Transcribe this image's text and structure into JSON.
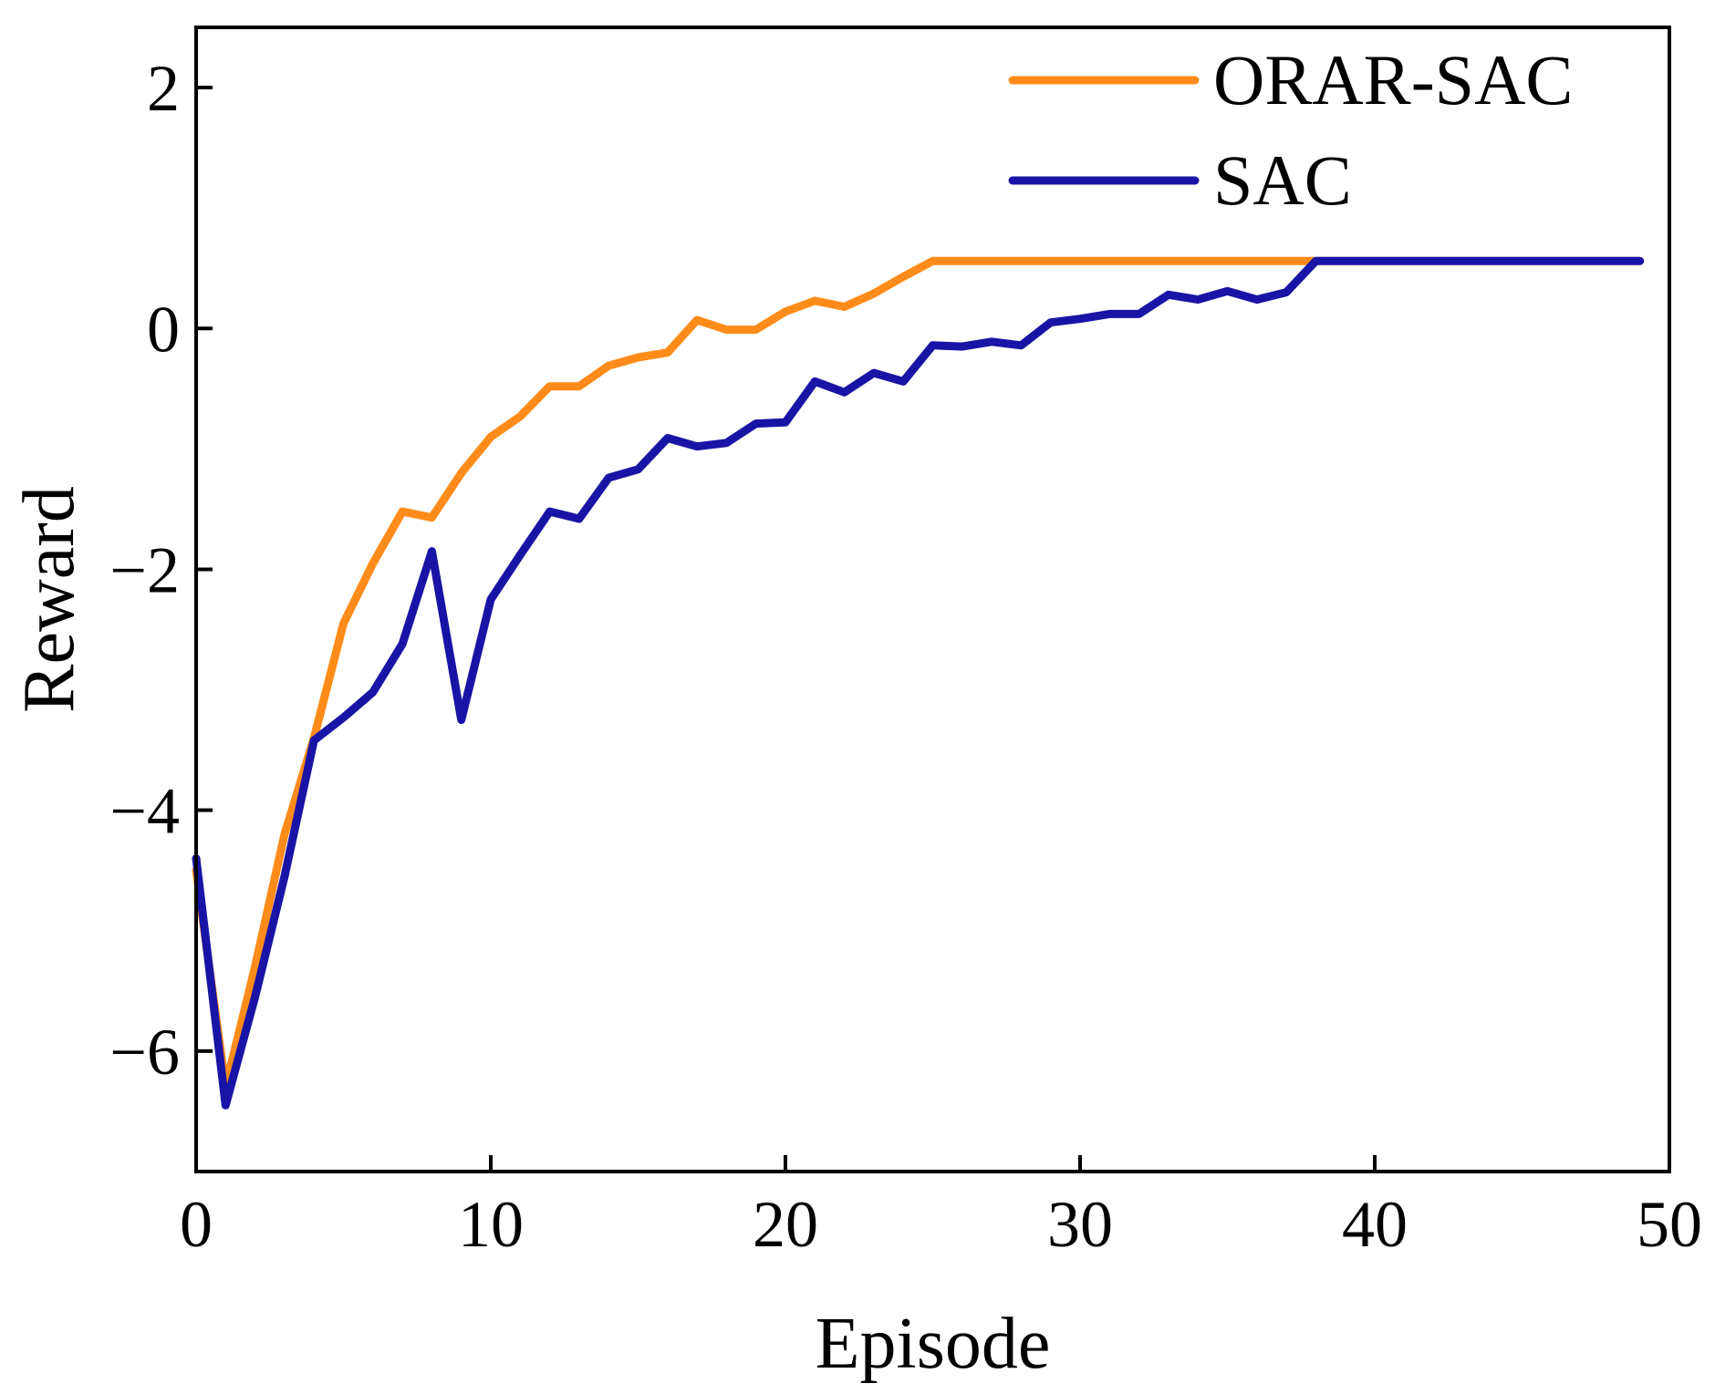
{
  "chart_data": {
    "type": "line",
    "title": "",
    "xlabel": "Episode",
    "ylabel": "Reward",
    "xlim": [
      0,
      50
    ],
    "ylim": [
      -7,
      2.5
    ],
    "xticks": [
      0,
      10,
      20,
      30,
      40,
      50
    ],
    "yticks": [
      2,
      0,
      -2,
      -4,
      -6
    ],
    "ytick_labels": [
      "2",
      "0",
      "−2",
      "−4",
      "−6"
    ],
    "grid": false,
    "legend_position": "top-right",
    "series": [
      {
        "name": "ORAR-SAC",
        "color": "#ff8c1a",
        "x": [
          0,
          1,
          2,
          3,
          4,
          5,
          6,
          7,
          8,
          9,
          10,
          11,
          12,
          13,
          14,
          15,
          16,
          17,
          18,
          19,
          20,
          21,
          22,
          23,
          24,
          25,
          26,
          27,
          28,
          29,
          30,
          31,
          32,
          33,
          34,
          35,
          36,
          37,
          38,
          39,
          40,
          41,
          42,
          43,
          44,
          45,
          46,
          47,
          48,
          49
        ],
        "y": [
          -4.5,
          -6.3,
          -5.3,
          -4.2,
          -3.4,
          -2.45,
          -1.95,
          -1.52,
          -1.57,
          -1.2,
          -0.9,
          -0.73,
          -0.48,
          -0.48,
          -0.31,
          -0.24,
          -0.2,
          0.07,
          -0.01,
          -0.01,
          0.14,
          0.23,
          0.18,
          0.29,
          0.43,
          0.56,
          0.56,
          0.56,
          0.56,
          0.56,
          0.56,
          0.56,
          0.56,
          0.56,
          0.56,
          0.56,
          0.56,
          0.56,
          0.56,
          0.56,
          0.56,
          0.56,
          0.56,
          0.56,
          0.56,
          0.56,
          0.56,
          0.56,
          0.56,
          0.56
        ]
      },
      {
        "name": "SAC",
        "color": "#1a14a6",
        "x": [
          0,
          1,
          2,
          3,
          4,
          5,
          6,
          7,
          8,
          9,
          10,
          11,
          12,
          13,
          14,
          15,
          16,
          17,
          18,
          19,
          20,
          21,
          22,
          23,
          24,
          25,
          26,
          27,
          28,
          29,
          30,
          31,
          32,
          33,
          34,
          35,
          36,
          37,
          38,
          39,
          40,
          41,
          42,
          43,
          44,
          45,
          46,
          47,
          48,
          49
        ],
        "y": [
          -4.4,
          -6.45,
          -5.55,
          -4.55,
          -3.42,
          -3.23,
          -3.02,
          -2.62,
          -1.85,
          -3.25,
          -2.25,
          -1.88,
          -1.52,
          -1.58,
          -1.24,
          -1.17,
          -0.91,
          -0.98,
          -0.95,
          -0.79,
          -0.78,
          -0.44,
          -0.53,
          -0.37,
          -0.44,
          -0.14,
          -0.15,
          -0.11,
          -0.14,
          0.05,
          0.08,
          0.12,
          0.12,
          0.28,
          0.24,
          0.31,
          0.24,
          0.3,
          0.56,
          0.56,
          0.56,
          0.56,
          0.56,
          0.56,
          0.56,
          0.56,
          0.56,
          0.56,
          0.56,
          0.56
        ]
      }
    ]
  }
}
